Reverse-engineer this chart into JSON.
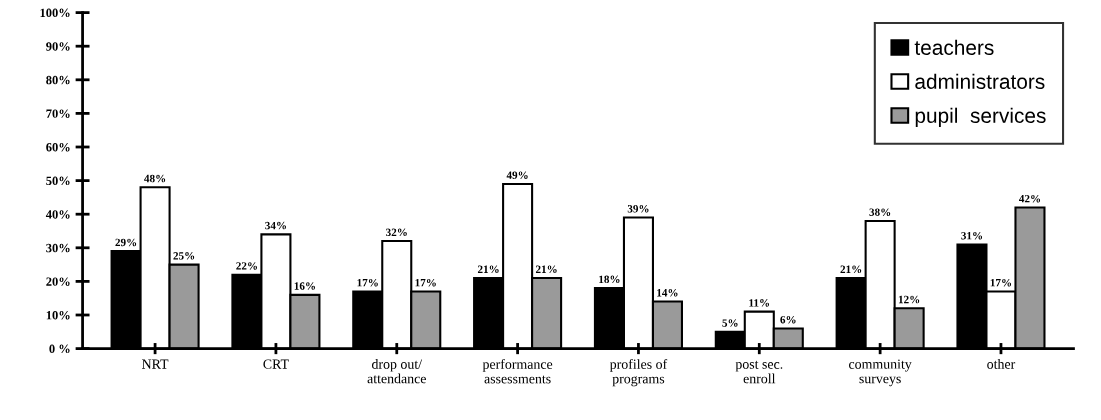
{
  "chart_data": {
    "type": "bar",
    "categories": [
      "NRT",
      "CRT",
      "drop out/\nattendance",
      "performance\nassessments",
      "profiles of\nprograms",
      "post sec.\nenroll",
      "community\nsurveys",
      "other"
    ],
    "series": [
      {
        "name": "teachers",
        "color": "#000000",
        "values": [
          29,
          22,
          17,
          21,
          18,
          5,
          21,
          31
        ],
        "value_labels": [
          "29%",
          "22%",
          "17%",
          "21%",
          "18%",
          "5%",
          "21%",
          "31%"
        ]
      },
      {
        "name": "administrators",
        "color": "#ffffff",
        "values": [
          48,
          34,
          32,
          49,
          39,
          11,
          38,
          17
        ],
        "value_labels": [
          "48%",
          "34%",
          "32%",
          "49%",
          "39%",
          "11%",
          "38%",
          "17%"
        ]
      },
      {
        "name": "pupil  services",
        "color": "#9a9a9a",
        "values": [
          25,
          16,
          17,
          21,
          14,
          6,
          12,
          42
        ],
        "value_labels": [
          "25%",
          "16%",
          "17%",
          "21%",
          "14%",
          "6%",
          "12%",
          "42%"
        ]
      }
    ],
    "ylim": [
      0,
      100
    ],
    "yticks": [
      {
        "value": 0,
        "label": "0 %"
      },
      {
        "value": 10,
        "label": "10%"
      },
      {
        "value": 20,
        "label": "20%"
      },
      {
        "value": 30,
        "label": "30%"
      },
      {
        "value": 40,
        "label": "40%"
      },
      {
        "value": 50,
        "label": "50%"
      },
      {
        "value": 60,
        "label": "60%"
      },
      {
        "value": 70,
        "label": "70%"
      },
      {
        "value": 80,
        "label": "80%"
      },
      {
        "value": 90,
        "label": "90%"
      },
      {
        "value": 100,
        "label": "100%"
      }
    ],
    "grid": false,
    "legend": "top right"
  }
}
